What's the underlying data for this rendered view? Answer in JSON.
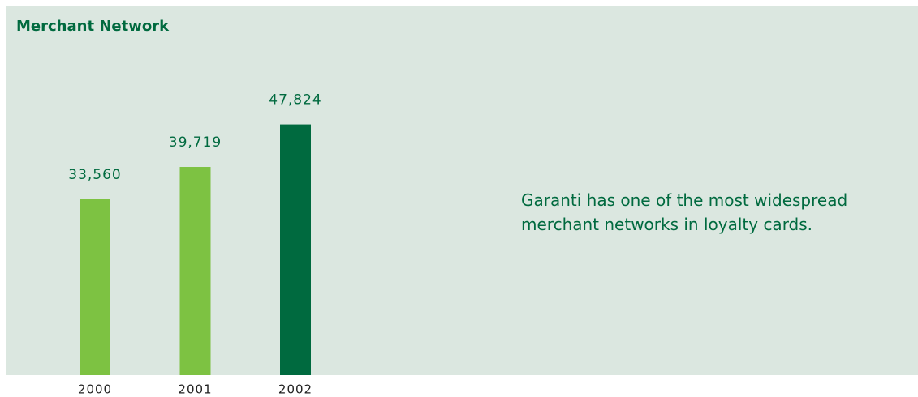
{
  "chart_data": {
    "type": "bar",
    "title": "Merchant Network",
    "categories": [
      "2000",
      "2001",
      "2002"
    ],
    "values": [
      33560,
      39719,
      47824
    ],
    "value_labels": [
      "33,560",
      "39,719",
      "47,824"
    ],
    "colors": [
      "#7dc242",
      "#7dc242",
      "#006a3f"
    ],
    "annotation": "Garanti has one of the most widespread merchant networks in loyalty cards."
  }
}
